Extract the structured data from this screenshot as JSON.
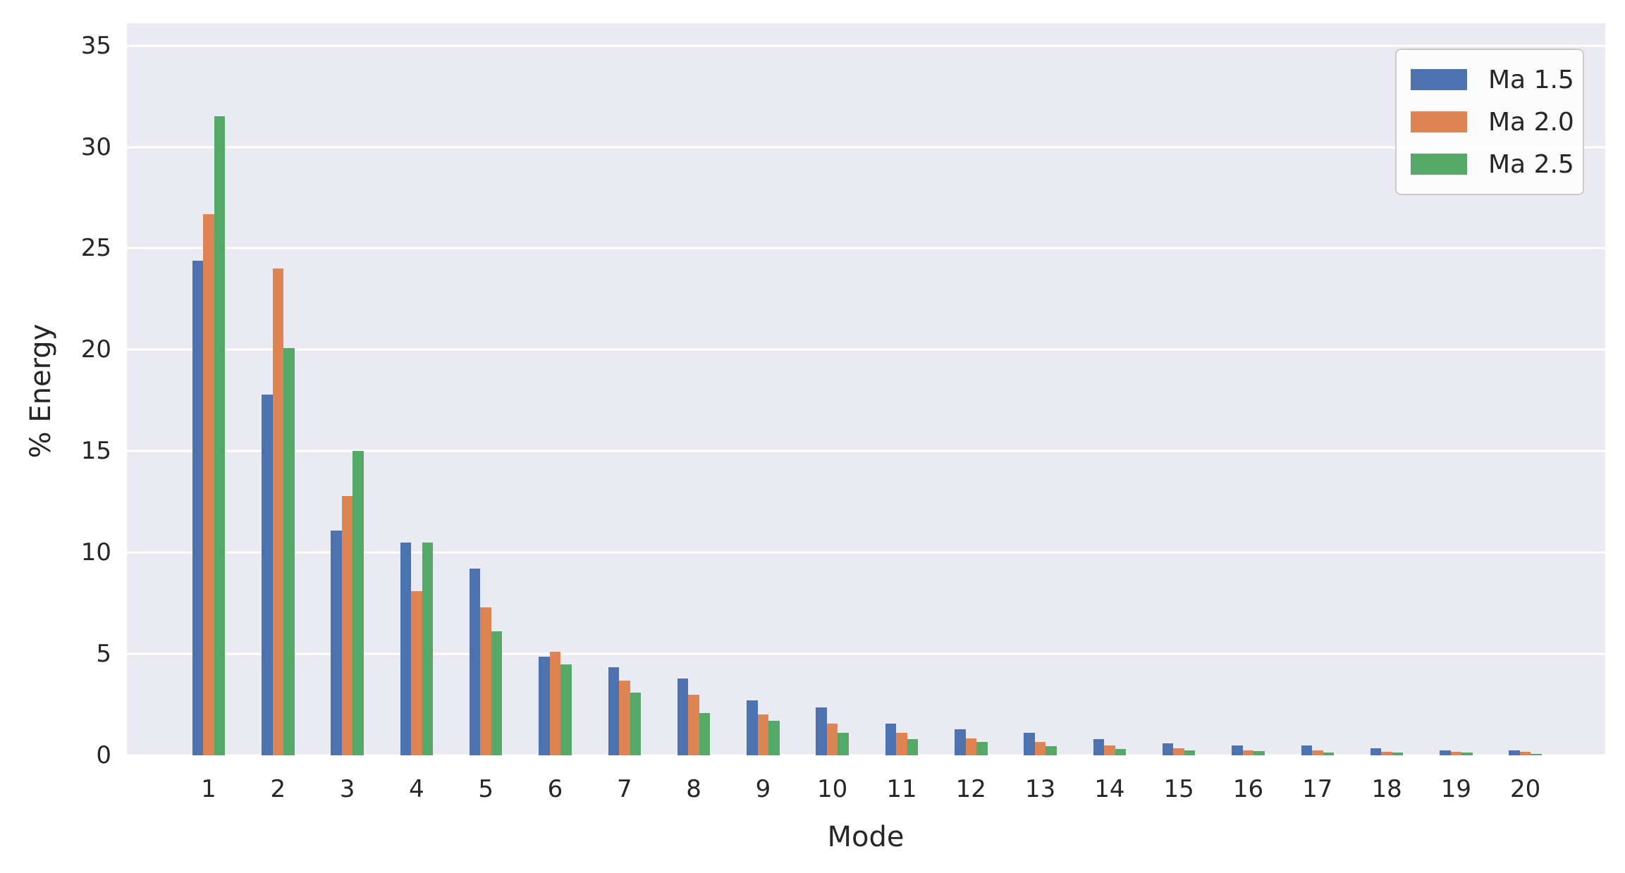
{
  "chart_data": {
    "type": "bar",
    "title": "",
    "xlabel": "Mode",
    "ylabel": "% Energy",
    "categories": [
      "1",
      "2",
      "3",
      "4",
      "5",
      "6",
      "7",
      "8",
      "9",
      "10",
      "11",
      "12",
      "13",
      "14",
      "15",
      "16",
      "17",
      "18",
      "19",
      "20"
    ],
    "series": [
      {
        "name": "Ma 1.5",
        "color": "#4c72b0",
        "values": [
          24.4,
          17.8,
          11.1,
          10.5,
          9.2,
          4.85,
          4.35,
          3.8,
          2.7,
          2.35,
          1.55,
          1.3,
          1.1,
          0.8,
          0.6,
          0.5,
          0.5,
          0.35,
          0.25,
          0.25
        ]
      },
      {
        "name": "Ma 2.0",
        "color": "#dd8452",
        "values": [
          26.7,
          24.0,
          12.8,
          8.1,
          7.3,
          5.1,
          3.7,
          3.0,
          2.0,
          1.55,
          1.1,
          0.85,
          0.65,
          0.5,
          0.35,
          0.25,
          0.25,
          0.18,
          0.17,
          0.16
        ]
      },
      {
        "name": "Ma 2.5",
        "color": "#55a868",
        "values": [
          31.5,
          20.1,
          15.0,
          10.5,
          6.1,
          4.5,
          3.1,
          2.1,
          1.7,
          1.1,
          0.8,
          0.65,
          0.45,
          0.3,
          0.25,
          0.2,
          0.15,
          0.15,
          0.15,
          0.07
        ]
      }
    ],
    "yticks": [
      0,
      5,
      10,
      15,
      20,
      25,
      30,
      35
    ],
    "ylim": [
      0,
      36.1
    ],
    "grid": true,
    "legend_position": "upper-right",
    "plot_background": "#eaeaf2",
    "gridline_color": "#ffffff",
    "text_color": "#262626"
  }
}
